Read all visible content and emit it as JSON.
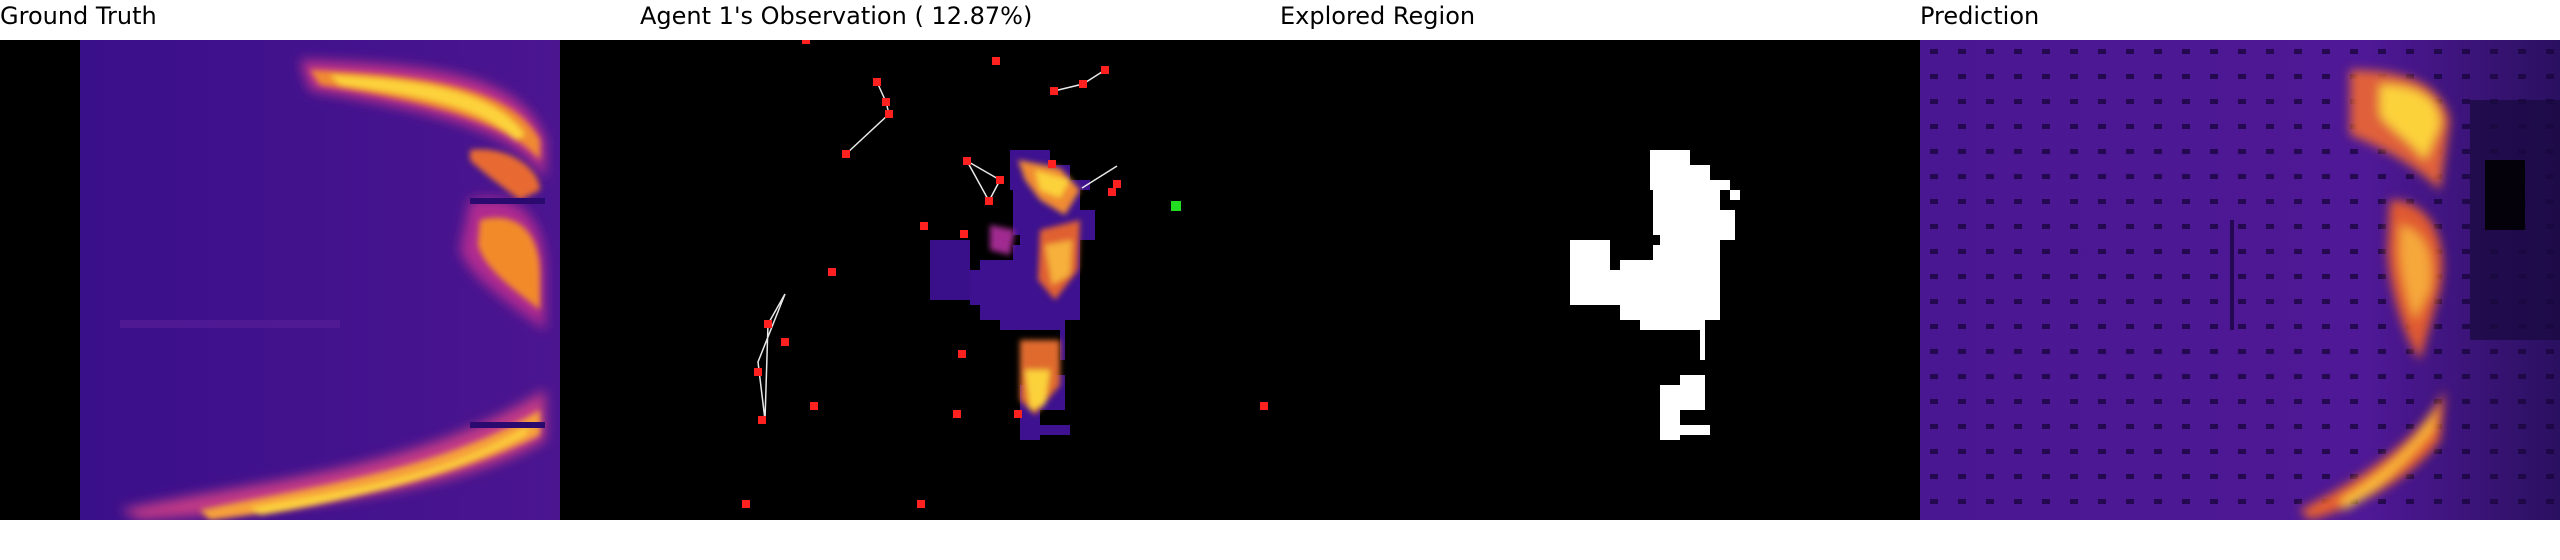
{
  "panels": [
    {
      "title": "Ground Truth"
    },
    {
      "title": "Agent 1's Observation ( 12.87%)"
    },
    {
      "title": "Explored Region"
    },
    {
      "title": "Prediction"
    }
  ],
  "colors": {
    "background": "#000000",
    "heat_low": "#2a0a6e",
    "heat_mid": "#6a1fa0",
    "heat_warm": "#e0502a",
    "heat_hot": "#fcd23a",
    "explored": "#ffffff",
    "agent_marker": "#ff2020",
    "active_agent_marker": "#22dd22",
    "comm_link": "#e8e8e8"
  }
}
